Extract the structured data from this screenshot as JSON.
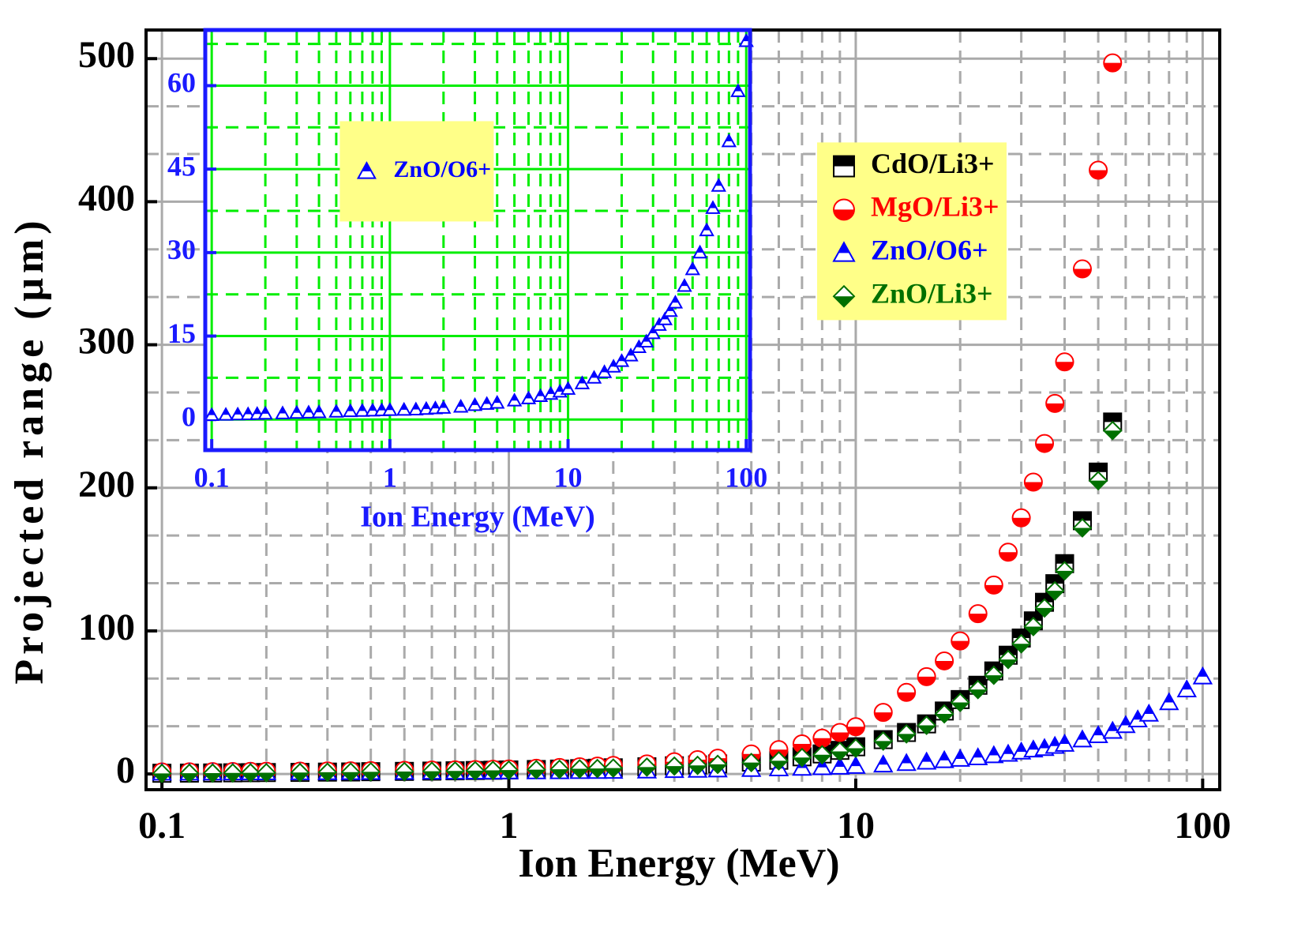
{
  "chart_data": [
    {
      "type": "scatter",
      "xlabel": "Ion Energy (MeV)",
      "ylabel": "Projected range (μm)",
      "x": [
        0.1,
        0.12,
        0.14,
        0.16,
        0.18,
        0.2,
        0.25,
        0.3,
        0.35,
        0.4,
        0.5,
        0.6,
        0.7,
        0.8,
        0.9,
        1,
        1.2,
        1.4,
        1.6,
        1.8,
        2,
        2.5,
        3,
        3.5,
        4,
        5,
        6,
        7,
        8,
        9,
        10,
        12,
        14,
        16,
        18,
        20,
        22.5,
        25,
        27.5,
        30,
        32.5,
        35,
        37.5,
        40,
        45,
        50,
        55,
        60,
        65,
        70,
        80,
        90,
        100
      ],
      "series": [
        {
          "name": "CdO/Li3+",
          "color": "#000000",
          "marker": "square",
          "half": "top",
          "values": [
            0.5,
            0.6,
            0.7,
            0.8,
            0.9,
            1,
            1.1,
            1.3,
            1.4,
            1.6,
            1.8,
            2,
            2.2,
            2.4,
            2.6,
            2.8,
            3.1,
            3.4,
            3.7,
            4,
            4.3,
            5,
            5.7,
            6.3,
            7,
            8.3,
            9.6,
            12,
            14,
            16.5,
            19,
            24,
            29,
            35,
            44,
            52,
            62,
            72,
            83,
            95,
            107,
            120,
            133,
            147,
            177,
            211,
            246,
            null,
            null,
            null,
            null,
            null,
            null
          ]
        },
        {
          "name": "MgO/Li3+",
          "color": "#ff0000",
          "marker": "circle",
          "half": "bottom",
          "values": [
            1.4,
            1.5,
            1.6,
            1.7,
            1.8,
            1.9,
            2,
            2.1,
            2.2,
            2.3,
            2.5,
            2.7,
            2.9,
            3.1,
            3.3,
            3.5,
            4,
            4.5,
            5,
            5.5,
            6,
            7,
            8.5,
            10,
            11,
            14,
            17,
            21,
            25,
            29,
            33,
            43,
            57,
            68,
            79,
            93,
            112,
            132,
            155,
            179,
            204,
            231,
            259,
            288,
            353,
            422,
            497,
            null,
            null,
            null,
            null,
            null,
            null
          ]
        },
        {
          "name": "ZnO/O6+",
          "color": "#0000ff",
          "marker": "triangle",
          "half": "top",
          "values": [
            0.8,
            0.85,
            0.9,
            0.95,
            1,
            1.05,
            1.1,
            1.2,
            1.25,
            1.3,
            1.4,
            1.5,
            1.55,
            1.6,
            1.65,
            1.7,
            1.75,
            1.8,
            1.9,
            2,
            2.1,
            2.3,
            2.6,
            2.8,
            3,
            3.4,
            3.8,
            4.2,
            4.6,
            5,
            5.5,
            6.5,
            7.5,
            8.5,
            9.5,
            10.5,
            11.5,
            13,
            14,
            15.5,
            17,
            18,
            19.5,
            21,
            24,
            27,
            30,
            34,
            38,
            42,
            50,
            59,
            68
          ]
        },
        {
          "name": "ZnO/Li3+",
          "color": "#007000",
          "marker": "diamond",
          "half": "bottom",
          "values": [
            0.4,
            0.5,
            0.6,
            0.7,
            0.8,
            0.9,
            1,
            1.2,
            1.3,
            1.5,
            1.7,
            1.9,
            2.1,
            2.3,
            2.5,
            2.7,
            3,
            3.3,
            3.6,
            3.8,
            4.1,
            4.8,
            5.5,
            6,
            6.7,
            8,
            9.2,
            11.5,
            13.4,
            15.8,
            18,
            23,
            28,
            34,
            42,
            50,
            59,
            69,
            80,
            91,
            103,
            116,
            128,
            142,
            172,
            205,
            240,
            null,
            null,
            null,
            null,
            null,
            null
          ]
        }
      ],
      "xlim": [
        0.09,
        112
      ],
      "ylim": [
        -11,
        520
      ],
      "xticks": [
        0.1,
        1,
        10,
        100
      ],
      "yticks": [
        0,
        100,
        200,
        300,
        400,
        500
      ],
      "log_x": true,
      "grid": true,
      "grid_color": "#aaaaaa",
      "axis_color": "#000000",
      "legend": "upper right"
    },
    {
      "type": "scatter",
      "xlabel": "Ion Energy (MeV)",
      "x": [
        0.1,
        0.12,
        0.14,
        0.16,
        0.18,
        0.2,
        0.25,
        0.3,
        0.35,
        0.4,
        0.5,
        0.6,
        0.7,
        0.8,
        0.9,
        1,
        1.2,
        1.4,
        1.6,
        1.8,
        2,
        2.5,
        3,
        3.5,
        4,
        5,
        6,
        7,
        8,
        9,
        10,
        12,
        14,
        16,
        18,
        20,
        22.5,
        25,
        27.5,
        30,
        32.5,
        35,
        37.5,
        40,
        45,
        50,
        55,
        60,
        65,
        70,
        80,
        90,
        100
      ],
      "series": [
        {
          "name": "ZnO/O6+",
          "color": "#0000ff",
          "marker": "triangle",
          "half": "top",
          "values": [
            0.8,
            0.85,
            0.9,
            0.95,
            1,
            1.05,
            1.1,
            1.2,
            1.25,
            1.3,
            1.4,
            1.5,
            1.55,
            1.6,
            1.65,
            1.7,
            1.75,
            1.8,
            1.9,
            2,
            2.1,
            2.3,
            2.6,
            2.8,
            3,
            3.4,
            3.8,
            4.2,
            4.6,
            5,
            5.5,
            6.5,
            7.5,
            8.5,
            9.5,
            10.5,
            11.5,
            13,
            14,
            15.5,
            17,
            18,
            19.5,
            21,
            24,
            27,
            30,
            34,
            38,
            42,
            50,
            59,
            68
          ]
        }
      ],
      "xlim": [
        0.092,
        105
      ],
      "ylim": [
        -5.5,
        70
      ],
      "xticks": [
        0.1,
        1,
        10,
        100
      ],
      "yticks": [
        0,
        15,
        30,
        45,
        60
      ],
      "log_x": true,
      "grid": true,
      "grid_color": "#00ee00",
      "axis_color": "#1a1aff",
      "legend": "upper left"
    }
  ]
}
